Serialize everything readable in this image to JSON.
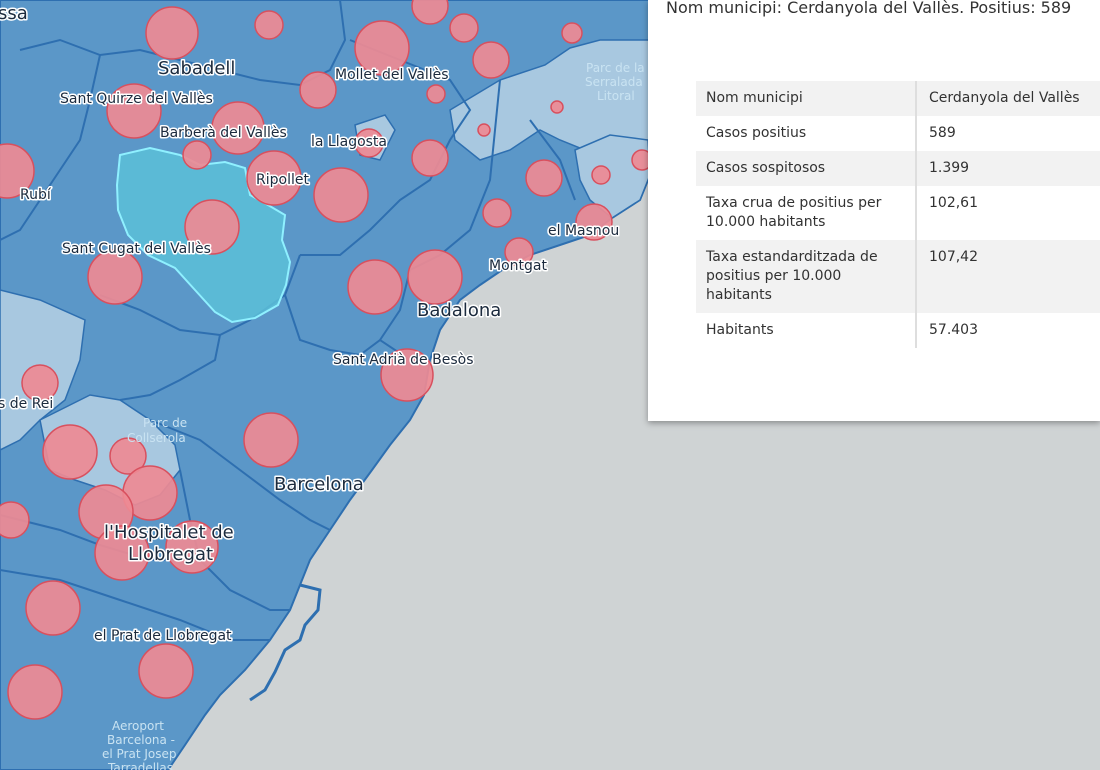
{
  "popup": {
    "title": "Nom municipi: Cerdanyola del Vallès. Positius: 589",
    "rows": [
      {
        "key": "Nom municipi",
        "value": "Cerdanyola del Vallès"
      },
      {
        "key": "Casos positius",
        "value": "589"
      },
      {
        "key": "Casos sospitosos",
        "value": "1.399"
      },
      {
        "key": "Taxa crua de positius per 10.000 habitants",
        "value": "102,61"
      },
      {
        "key": "Taxa estandarditzada de positius per 10.000 habitants",
        "value": "107,42"
      },
      {
        "key": "Habitants",
        "value": "57.403"
      }
    ]
  },
  "map": {
    "colors": {
      "sea": "#cfd3d4",
      "land": "#5b97c8",
      "land_light": "#a8c8e0",
      "border": "#2e6fb0",
      "selected_fill": "#5cc0d8",
      "selected_outline": "#8ff0ff",
      "bubble": "#ee8a94",
      "bubble_stroke": "#d8505e"
    },
    "selected_municipality": "Cerdanyola del Vallès",
    "labels": {
      "terrassa": "ssa",
      "sabadell": "Sabadell",
      "mollet": "Mollet del Vallès",
      "serralada": "Parc de la Serralada Litoral",
      "sant_quirze": "Sant Quirze del Vallès",
      "barbera": "Barberà del Vallès",
      "llagosta": "la Llagosta",
      "rubi": "Rubí",
      "ripollet": "Ripollet",
      "masnou": "el Masnou",
      "sant_cugat": "Sant Cugat del Vallès",
      "montgat": "Montgat",
      "badalona": "Badalona",
      "sant_adria": "Sant Adrià de Besòs",
      "de_rei": "s de Rei",
      "collserola": "Parc de Collserola",
      "barcelona": "Barcelona",
      "hospitalet": "l'Hospitalet de Llobregat",
      "prat": "el Prat de Llobregat",
      "aeroport": "Aeroport Barcelona - el Prat Josep Tarradellas"
    }
  }
}
